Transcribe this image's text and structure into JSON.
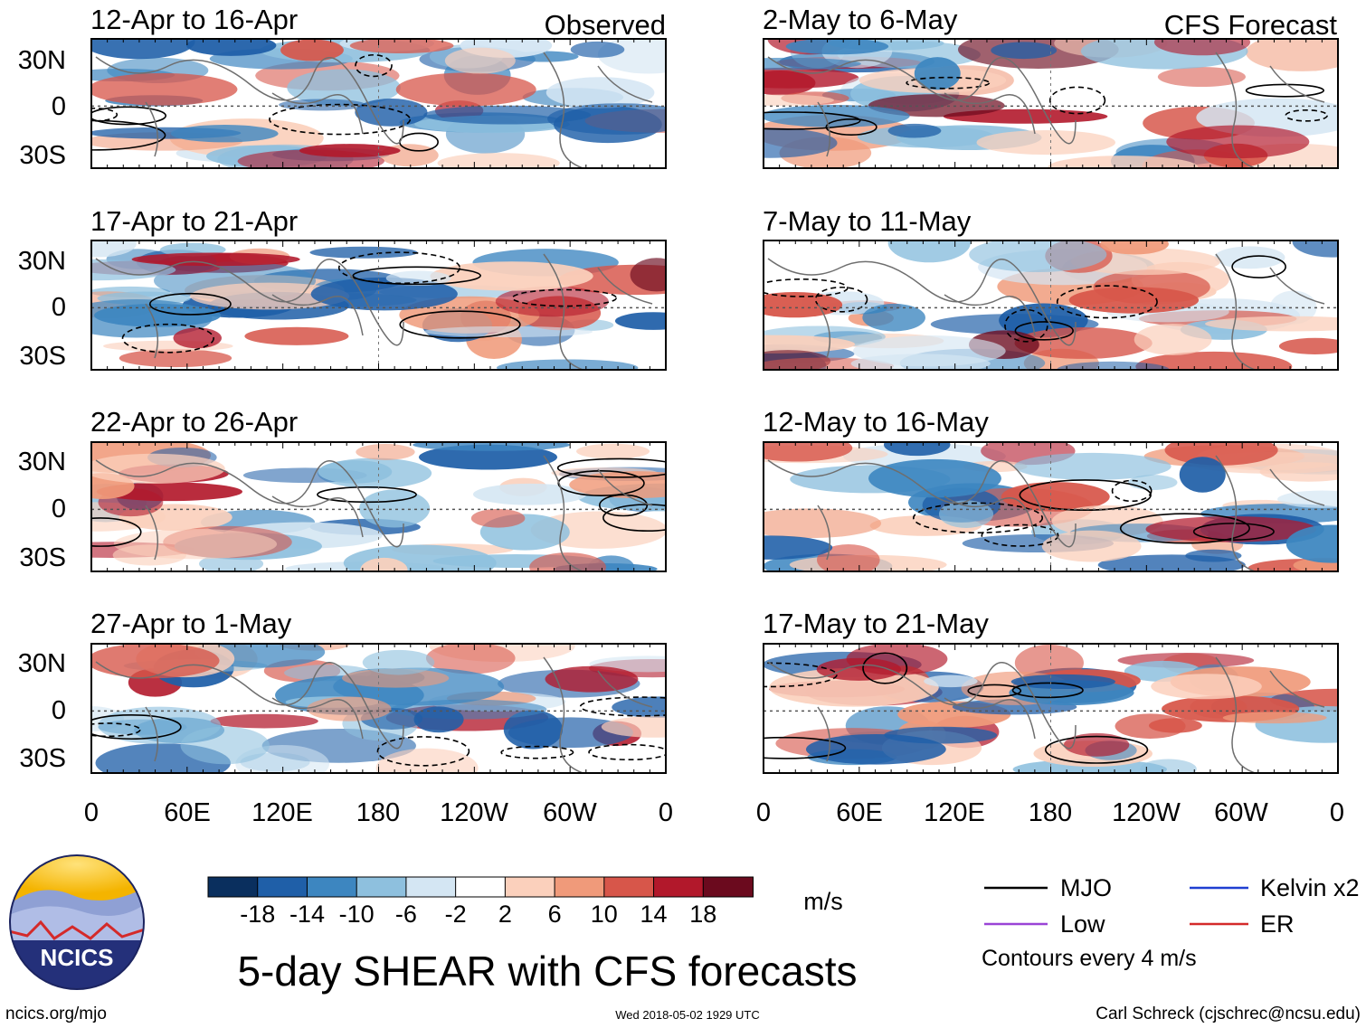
{
  "title": "5-day SHEAR with CFS forecasts",
  "header": {
    "left_label": "Observed",
    "right_label": "CFS Forecast"
  },
  "units": "m/s",
  "contours_note": "Contours every 4 m/s",
  "footer": {
    "url": "ncics.org/mjo",
    "timestamp": "Wed 2018-05-02 1929 UTC",
    "credit": "Carl Schreck (cjschrec@ncsu.edu)",
    "logo_text": "NCICS"
  },
  "legend": [
    {
      "label": "MJO",
      "color": "#000000"
    },
    {
      "label": "Kelvin x2",
      "color": "#1f3fd1"
    },
    {
      "label": "Low",
      "color": "#9a44d6"
    },
    {
      "label": "ER",
      "color": "#d42a2a"
    }
  ],
  "colorbar": {
    "ticks": [
      "-18",
      "-14",
      "-10",
      "-6",
      "-2",
      "2",
      "6",
      "10",
      "14",
      "18"
    ],
    "colors": [
      "#0a2f5e",
      "#1f5fa8",
      "#3d86c0",
      "#8ec0de",
      "#d4e6f3",
      "#ffffff",
      "#fbd0bc",
      "#f09a7a",
      "#d7564a",
      "#b2182b",
      "#6b0a1e"
    ]
  },
  "chart_data": {
    "type": "heatmap",
    "variable": "5-day wind shear anomaly",
    "units": "m/s",
    "contour_interval": 4,
    "xticks": [
      "0",
      "60E",
      "120E",
      "180",
      "120W",
      "60W",
      "0"
    ],
    "yticks": [
      "30N",
      "0",
      "30S"
    ],
    "panels": [
      {
        "title": "12-Apr to 16-Apr",
        "source": "Observed"
      },
      {
        "title": "17-Apr to 21-Apr",
        "source": "Observed"
      },
      {
        "title": "22-Apr to 26-Apr",
        "source": "Observed"
      },
      {
        "title": "27-Apr to 1-May",
        "source": "Observed"
      },
      {
        "title": "2-May to 6-May",
        "source": "CFS Forecast"
      },
      {
        "title": "7-May to 11-May",
        "source": "CFS Forecast"
      },
      {
        "title": "12-May to 16-May",
        "source": "CFS Forecast"
      },
      {
        "title": "17-May to 21-May",
        "source": "CFS Forecast"
      }
    ]
  }
}
